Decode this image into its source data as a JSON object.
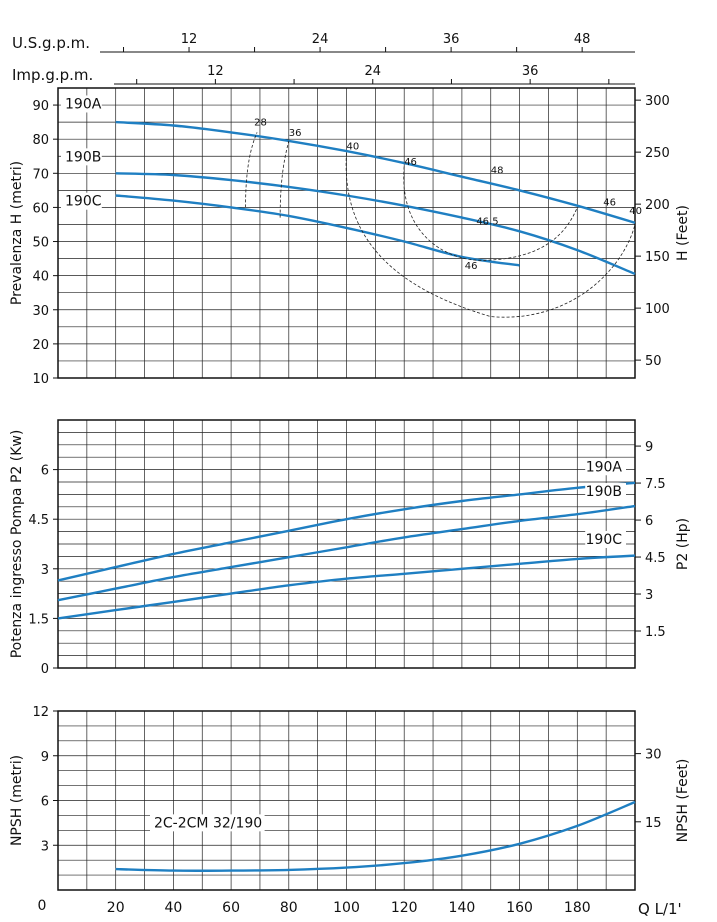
{
  "top_scales": {
    "usgpm": {
      "label": "U.S.g.p.m.",
      "ticks": [
        "12",
        "24",
        "36",
        "48"
      ],
      "values": [
        12,
        24,
        36,
        48
      ]
    },
    "impgpm": {
      "label": "Imp.g.p.m.",
      "ticks": [
        "12",
        "24",
        "36"
      ],
      "values": [
        12,
        24,
        36
      ]
    }
  },
  "x_axis": {
    "label": "Q  L/1'",
    "zero": "0",
    "ticks": [
      "20",
      "40",
      "60",
      "80",
      "100",
      "120",
      "140",
      "160",
      "180"
    ],
    "values": [
      20,
      40,
      60,
      80,
      100,
      120,
      140,
      160,
      180
    ],
    "range": [
      0,
      200
    ]
  },
  "chart_data": [
    {
      "type": "line",
      "ylabel": "Prevalenza H (metri)",
      "y2label": "H (Feet)",
      "ylim": [
        10,
        95
      ],
      "yticks": [
        10,
        20,
        30,
        40,
        50,
        60,
        70,
        80,
        90
      ],
      "y2ticks": [
        50,
        100,
        150,
        200,
        250,
        300
      ],
      "grid": true,
      "series": [
        {
          "name": "190A",
          "x": [
            20,
            40,
            60,
            80,
            100,
            120,
            140,
            160,
            180,
            200
          ],
          "values": [
            85,
            84,
            82,
            79.5,
            76.5,
            73,
            69,
            65,
            60.5,
            55.5
          ]
        },
        {
          "name": "190B",
          "x": [
            20,
            40,
            60,
            80,
            100,
            120,
            140,
            160,
            180,
            200
          ],
          "values": [
            70,
            69.5,
            68,
            66,
            63.5,
            60.5,
            57,
            53,
            47.5,
            40.5
          ]
        },
        {
          "name": "190C",
          "x": [
            20,
            40,
            60,
            80,
            100,
            120,
            140,
            160
          ],
          "values": [
            63.5,
            62,
            60,
            57.5,
            54,
            50,
            45.5,
            43
          ]
        }
      ],
      "efficiency_labels": [
        "28",
        "36",
        "40",
        "46",
        "48",
        "46",
        "40",
        "46.5",
        "46"
      ]
    },
    {
      "type": "line",
      "ylabel": "Potenza ingresso Pompa P2 (Kw)",
      "y2label": "P2 (Hp)",
      "ylim": [
        0,
        7.5
      ],
      "yticks": [
        "0",
        "1.5",
        "3",
        "4.5",
        "6"
      ],
      "yvalues": [
        0,
        1.5,
        3,
        4.5,
        6
      ],
      "y2ticks": [
        "1.5",
        "3",
        "4.5",
        "6",
        "7.5",
        "9"
      ],
      "y2values": [
        1.5,
        3,
        4.5,
        6,
        7.5,
        9
      ],
      "grid": true,
      "series": [
        {
          "name": "190A",
          "x": [
            0,
            20,
            40,
            60,
            80,
            100,
            120,
            140,
            160,
            180,
            200
          ],
          "values": [
            2.65,
            3.05,
            3.45,
            3.8,
            4.15,
            4.5,
            4.8,
            5.05,
            5.25,
            5.45,
            5.6
          ]
        },
        {
          "name": "190B",
          "x": [
            0,
            20,
            40,
            60,
            80,
            100,
            120,
            140,
            160,
            180,
            200
          ],
          "values": [
            2.05,
            2.4,
            2.75,
            3.05,
            3.35,
            3.65,
            3.95,
            4.2,
            4.45,
            4.65,
            4.9
          ]
        },
        {
          "name": "190C",
          "x": [
            0,
            20,
            40,
            60,
            80,
            100,
            120,
            140,
            160,
            180,
            200
          ],
          "values": [
            1.5,
            1.75,
            2.0,
            2.25,
            2.5,
            2.7,
            2.85,
            3.0,
            3.15,
            3.3,
            3.4
          ]
        }
      ]
    },
    {
      "type": "line",
      "ylabel": "NPSH (metri)",
      "y2label": "NPSH (Feet)",
      "ylim": [
        0,
        12
      ],
      "yticks": [
        3,
        6,
        9,
        12
      ],
      "y2ticks": [
        15,
        30
      ],
      "grid": true,
      "annotation": "2C-2CM 32/190",
      "series": [
        {
          "name": "",
          "x": [
            20,
            40,
            60,
            80,
            100,
            120,
            140,
            160,
            180,
            200
          ],
          "values": [
            1.4,
            1.3,
            1.3,
            1.35,
            1.5,
            1.8,
            2.3,
            3.1,
            4.3,
            5.9
          ]
        }
      ]
    }
  ]
}
